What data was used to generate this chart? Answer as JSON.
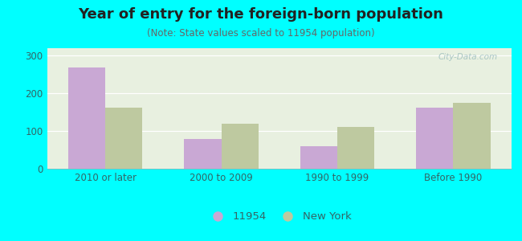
{
  "title": "Year of entry for the foreign-born population",
  "subtitle": "(Note: State values scaled to 11954 population)",
  "categories": [
    "2010 or later",
    "2000 to 2009",
    "1990 to 1999",
    "Before 1990"
  ],
  "series1_label": "11954",
  "series2_label": "New York",
  "series1_values": [
    268,
    78,
    60,
    163
  ],
  "series2_values": [
    163,
    120,
    112,
    175
  ],
  "series1_color": "#c9a8d4",
  "series2_color": "#bec9a0",
  "background_color": "#00ffff",
  "plot_bg_color": "#e8f0e0",
  "ylim": [
    0,
    320
  ],
  "yticks": [
    0,
    100,
    200,
    300
  ],
  "bar_width": 0.32,
  "title_fontsize": 13,
  "subtitle_fontsize": 8.5,
  "tick_fontsize": 8.5,
  "legend_fontsize": 9.5,
  "tick_color": "#336666",
  "grid_color": "#ffffff",
  "watermark": "City-Data.com"
}
